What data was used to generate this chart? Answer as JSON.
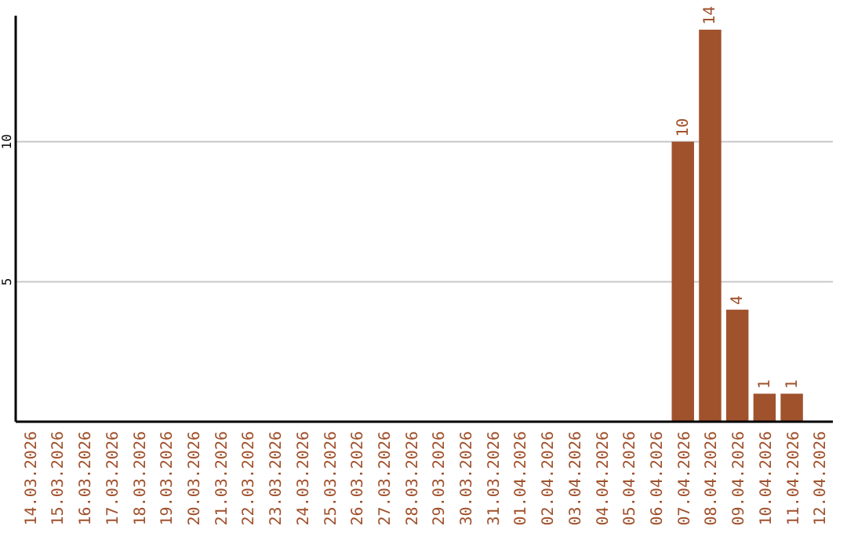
{
  "chart_data": {
    "type": "bar",
    "categories": [
      "14.03.2026",
      "15.03.2026",
      "16.03.2026",
      "17.03.2026",
      "18.03.2026",
      "19.03.2026",
      "20.03.2026",
      "21.03.2026",
      "22.03.2026",
      "23.03.2026",
      "24.03.2026",
      "25.03.2026",
      "26.03.2026",
      "27.03.2026",
      "28.03.2026",
      "29.03.2026",
      "30.03.2026",
      "31.03.2026",
      "01.04.2026",
      "02.04.2026",
      "03.04.2026",
      "04.04.2026",
      "05.04.2026",
      "06.04.2026",
      "07.04.2026",
      "08.04.2026",
      "09.04.2026",
      "10.04.2026",
      "11.04.2026",
      "12.04.2026"
    ],
    "values": [
      0,
      0,
      0,
      0,
      0,
      0,
      0,
      0,
      0,
      0,
      0,
      0,
      0,
      0,
      0,
      0,
      0,
      0,
      0,
      0,
      0,
      0,
      0,
      0,
      10,
      14,
      4,
      1,
      1,
      0
    ],
    "value_labels": [
      null,
      null,
      null,
      null,
      null,
      null,
      null,
      null,
      null,
      null,
      null,
      null,
      null,
      null,
      null,
      null,
      null,
      null,
      null,
      null,
      null,
      null,
      null,
      null,
      "10",
      "14",
      "4",
      "1",
      "1",
      null
    ],
    "color": "#a0522d",
    "ylim": [
      0,
      14.5
    ],
    "yticks": [
      5,
      10
    ],
    "grid": "y"
  }
}
